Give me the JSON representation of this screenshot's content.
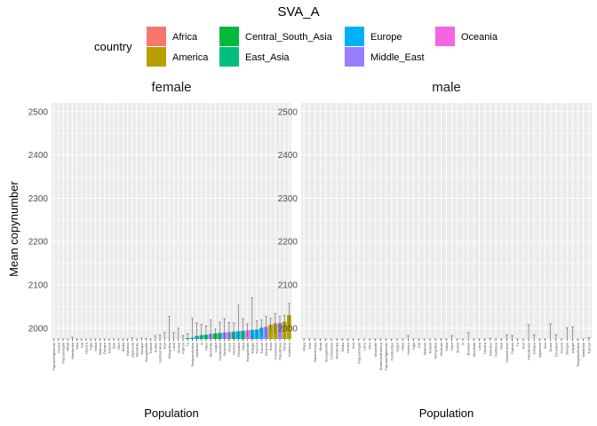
{
  "chart_data": {
    "type": "bar",
    "title": "SVA_A",
    "xlabel": "Population",
    "ylabel": "Mean copynumber",
    "ylim": [
      1975,
      2520
    ],
    "yticks": [
      2000,
      2100,
      2200,
      2300,
      2400,
      2500
    ],
    "grid": true,
    "legend": {
      "title": "country",
      "position": "top",
      "entries": [
        {
          "name": "Africa",
          "color": "#F8766D"
        },
        {
          "name": "America",
          "color": "#B79F00"
        },
        {
          "name": "Central_South_Asia",
          "color": "#00BA38"
        },
        {
          "name": "East_Asia",
          "color": "#00BF7D"
        },
        {
          "name": "Europe",
          "color": "#00B0F6"
        },
        {
          "name": "Middle_East",
          "color": "#9A7DFF"
        },
        {
          "name": "Oceania",
          "color": "#F564E3"
        }
      ]
    },
    "panels": [
      {
        "name": "female",
        "bars": [
          {
            "label": "PapuanHighlands",
            "group": "Oceania",
            "value": 1975,
            "err": 0
          },
          {
            "label": "Yoruba",
            "group": "Africa",
            "value": 1975,
            "err": 0
          },
          {
            "label": "PapuanSepik",
            "group": "Oceania",
            "value": 1975,
            "err": 0
          },
          {
            "label": "Mbuti",
            "group": "Africa",
            "value": 1975,
            "err": 0
          },
          {
            "label": "Mandenka",
            "group": "Africa",
            "value": 1975,
            "err": 4
          },
          {
            "label": "Naxi",
            "group": "East_Asia",
            "value": 1975,
            "err": 0
          },
          {
            "label": "Dai",
            "group": "East_Asia",
            "value": 1975,
            "err": 0
          },
          {
            "label": "Hazara",
            "group": "Central_South_Asia",
            "value": 1975,
            "err": 0
          },
          {
            "label": "Tujia",
            "group": "East_Asia",
            "value": 1975,
            "err": 0
          },
          {
            "label": "Yakut",
            "group": "East_Asia",
            "value": 1975,
            "err": 0
          },
          {
            "label": "Makrani",
            "group": "Central_South_Asia",
            "value": 1975,
            "err": 0
          },
          {
            "label": "Oroqen",
            "group": "East_Asia",
            "value": 1975,
            "err": 0
          },
          {
            "label": "Kalash",
            "group": "Central_South_Asia",
            "value": 1975,
            "err": 0
          },
          {
            "label": "She",
            "group": "East_Asia",
            "value": 1975,
            "err": 0
          },
          {
            "label": "Xibo",
            "group": "East_Asia",
            "value": 1975,
            "err": 0
          },
          {
            "label": "Biaka",
            "group": "Africa",
            "value": 1975,
            "err": 0
          },
          {
            "label": "Burusho",
            "group": "Central_South_Asia",
            "value": 1975,
            "err": 0
          },
          {
            "label": "Japanese",
            "group": "East_Asia",
            "value": 1975,
            "err": 3
          },
          {
            "label": "Mozabite",
            "group": "Middle_East",
            "value": 1975,
            "err": 0
          },
          {
            "label": "Basque",
            "group": "Europe",
            "value": 1975,
            "err": 2
          },
          {
            "label": "Bougainville",
            "group": "Oceania",
            "value": 1975,
            "err": 1
          },
          {
            "label": "Turkish",
            "group": "Middle_East",
            "value": 1975,
            "err": 0
          },
          {
            "label": "Kollab",
            "group": "Central_South_Asia",
            "value": 1975,
            "err": 8
          },
          {
            "label": "NorthernHan",
            "group": "East_Asia",
            "value": 1975,
            "err": 10
          },
          {
            "label": "Han",
            "group": "East_Asia",
            "value": 1975,
            "err": 15
          },
          {
            "label": "Mongolian",
            "group": "East_Asia",
            "value": 1975,
            "err": 52
          },
          {
            "label": "Lahu",
            "group": "East_Asia",
            "value": 1975,
            "err": 15
          },
          {
            "label": "Brahui",
            "group": "Central_South_Asia",
            "value": 1975,
            "err": 25
          },
          {
            "label": "Pathan",
            "group": "Central_South_Asia",
            "value": 1975,
            "err": 8
          },
          {
            "label": "Tu",
            "group": "East_Asia",
            "value": 1977,
            "err": 10
          },
          {
            "label": "BergamoItalian",
            "group": "Europe",
            "value": 1978,
            "err": 45
          },
          {
            "label": "Sardinian",
            "group": "Europe",
            "value": 1982,
            "err": 30
          },
          {
            "label": "Yi",
            "group": "East_Asia",
            "value": 1984,
            "err": 25
          },
          {
            "label": "Miao",
            "group": "East_Asia",
            "value": 1985,
            "err": 20
          },
          {
            "label": "Mozabite",
            "group": "Middle_East",
            "value": 1987,
            "err": 32
          },
          {
            "label": "Uygur",
            "group": "Central_South_Asia",
            "value": 1988,
            "err": 10
          },
          {
            "label": "Cambodian",
            "group": "East_Asia",
            "value": 1989,
            "err": 25
          },
          {
            "label": "Bedouin",
            "group": "Middle_East",
            "value": 1990,
            "err": 32
          },
          {
            "label": "Druze",
            "group": "Middle_East",
            "value": 1991,
            "err": 22
          },
          {
            "label": "Hezhen",
            "group": "East_Asia",
            "value": 1992,
            "err": 20
          },
          {
            "label": "Orcadian",
            "group": "Europe",
            "value": 1993,
            "err": 60
          },
          {
            "label": "Daur",
            "group": "East_Asia",
            "value": 1994,
            "err": 28
          },
          {
            "label": "Bougainville",
            "group": "Oceania",
            "value": 1995,
            "err": 15
          },
          {
            "label": "Adygei",
            "group": "Europe",
            "value": 1996,
            "err": 74
          },
          {
            "label": "French",
            "group": "Europe",
            "value": 1997,
            "err": 20
          },
          {
            "label": "Tuscan",
            "group": "Europe",
            "value": 2001,
            "err": 18
          },
          {
            "label": "Bedouin",
            "group": "Middle_East",
            "value": 2003,
            "err": 24
          },
          {
            "label": "Surui",
            "group": "America",
            "value": 2008,
            "err": 15
          },
          {
            "label": "Colombian",
            "group": "America",
            "value": 2011,
            "err": 23
          },
          {
            "label": "Palestinian",
            "group": "Middle_East",
            "value": 2012,
            "err": 15
          },
          {
            "label": "Pima",
            "group": "America",
            "value": 2015,
            "err": 15
          },
          {
            "label": "Karitiana",
            "group": "America",
            "value": 2030,
            "err": 27
          }
        ]
      },
      {
        "name": "male",
        "bars": [
          {
            "label": "Maya",
            "group": "America",
            "value": 1975,
            "err": 0
          },
          {
            "label": "Han",
            "group": "East_Asia",
            "value": 1975,
            "err": 0
          },
          {
            "label": "BantuKenya",
            "group": "Africa",
            "value": 1975,
            "err": 0
          },
          {
            "label": "Mbuti",
            "group": "Africa",
            "value": 1975,
            "err": 0
          },
          {
            "label": "Bougainville",
            "group": "Oceania",
            "value": 1975,
            "err": 0
          },
          {
            "label": "Colombian",
            "group": "America",
            "value": 1975,
            "err": 0
          },
          {
            "label": "Mandenka",
            "group": "Africa",
            "value": 1975,
            "err": 0
          },
          {
            "label": "Biaka",
            "group": "Africa",
            "value": 1975,
            "err": 0
          },
          {
            "label": "Yoruba",
            "group": "Africa",
            "value": 1975,
            "err": 0
          },
          {
            "label": "San",
            "group": "Africa",
            "value": 1975,
            "err": 0
          },
          {
            "label": "PapuanSepik",
            "group": "Oceania",
            "value": 1975,
            "err": 0
          },
          {
            "label": "Lahu",
            "group": "East_Asia",
            "value": 1975,
            "err": 0
          },
          {
            "label": "Xibo",
            "group": "East_Asia",
            "value": 1975,
            "err": 0
          },
          {
            "label": "Mozabite",
            "group": "Middle_East",
            "value": 1975,
            "err": 0
          },
          {
            "label": "BantuSouthAfrica",
            "group": "Africa",
            "value": 1975,
            "err": 0
          },
          {
            "label": "PapuanHighlands",
            "group": "Oceania",
            "value": 1975,
            "err": 0
          },
          {
            "label": "Cambodian",
            "group": "East_Asia",
            "value": 1975,
            "err": 0
          },
          {
            "label": "Uygur",
            "group": "Central_South_Asia",
            "value": 1975,
            "err": 0
          },
          {
            "label": "Miao",
            "group": "East_Asia",
            "value": 1975,
            "err": 0
          },
          {
            "label": "Hezhen",
            "group": "East_Asia",
            "value": 1975,
            "err": 8
          },
          {
            "label": "Tujia",
            "group": "East_Asia",
            "value": 1975,
            "err": 0
          },
          {
            "label": "Dai",
            "group": "East_Asia",
            "value": 1975,
            "err": 0
          },
          {
            "label": "Makrani",
            "group": "Central_South_Asia",
            "value": 1975,
            "err": 0
          },
          {
            "label": "Kalash",
            "group": "Central_South_Asia",
            "value": 1975,
            "err": 0
          },
          {
            "label": "Mongolian",
            "group": "East_Asia",
            "value": 1975,
            "err": 0
          },
          {
            "label": "Bedouin",
            "group": "Middle_East",
            "value": 1975,
            "err": 0
          },
          {
            "label": "Yakut",
            "group": "East_Asia",
            "value": 1975,
            "err": 0
          },
          {
            "label": "Daur",
            "group": "East_Asia",
            "value": 1975,
            "err": 8
          },
          {
            "label": "Brahui",
            "group": "Central_South_Asia",
            "value": 1975,
            "err": 0
          },
          {
            "label": "Yi",
            "group": "East_Asia",
            "value": 1975,
            "err": 0
          },
          {
            "label": "Russian",
            "group": "Europe",
            "value": 1975,
            "err": 15
          },
          {
            "label": "Mozabite",
            "group": "Middle_East",
            "value": 1975,
            "err": 0
          },
          {
            "label": "Lahu",
            "group": "East_Asia",
            "value": 1975,
            "err": 0
          },
          {
            "label": "Hazara",
            "group": "Central_South_Asia",
            "value": 1975,
            "err": 0
          },
          {
            "label": "Burusho",
            "group": "Central_South_Asia",
            "value": 1975,
            "err": 2
          },
          {
            "label": "Karitiana",
            "group": "America",
            "value": 1975,
            "err": 0
          },
          {
            "label": "Naxi",
            "group": "East_Asia",
            "value": 1975,
            "err": 0
          },
          {
            "label": "NorthernHan",
            "group": "East_Asia",
            "value": 1975,
            "err": 10
          },
          {
            "label": "Pathan",
            "group": "Central_South_Asia",
            "value": 1975,
            "err": 8
          },
          {
            "label": "Tu",
            "group": "East_Asia",
            "value": 1975,
            "err": 0
          },
          {
            "label": "Han",
            "group": "East_Asia",
            "value": 1975,
            "err": 0
          },
          {
            "label": "Palestinian",
            "group": "Middle_East",
            "value": 1975,
            "err": 33
          },
          {
            "label": "Oroqen",
            "group": "East_Asia",
            "value": 1975,
            "err": 10
          },
          {
            "label": "Japanese",
            "group": "East_Asia",
            "value": 1975,
            "err": 0
          },
          {
            "label": "She",
            "group": "East_Asia",
            "value": 1975,
            "err": 0
          },
          {
            "label": "Druze",
            "group": "Middle_East",
            "value": 1975,
            "err": 35
          },
          {
            "label": "Orcadian",
            "group": "Europe",
            "value": 1975,
            "err": 10
          },
          {
            "label": "French",
            "group": "Europe",
            "value": 1975,
            "err": 0
          },
          {
            "label": "Basque",
            "group": "Europe",
            "value": 1975,
            "err": 26
          },
          {
            "label": "Adygei",
            "group": "Europe",
            "value": 1975,
            "err": 28
          },
          {
            "label": "BergamoItalian",
            "group": "Europe",
            "value": 1975,
            "err": 0
          },
          {
            "label": "Sardinian",
            "group": "Europe",
            "value": 1975,
            "err": 0
          },
          {
            "label": "Tuscan",
            "group": "Europe",
            "value": 1975,
            "err": 3
          }
        ]
      }
    ]
  }
}
